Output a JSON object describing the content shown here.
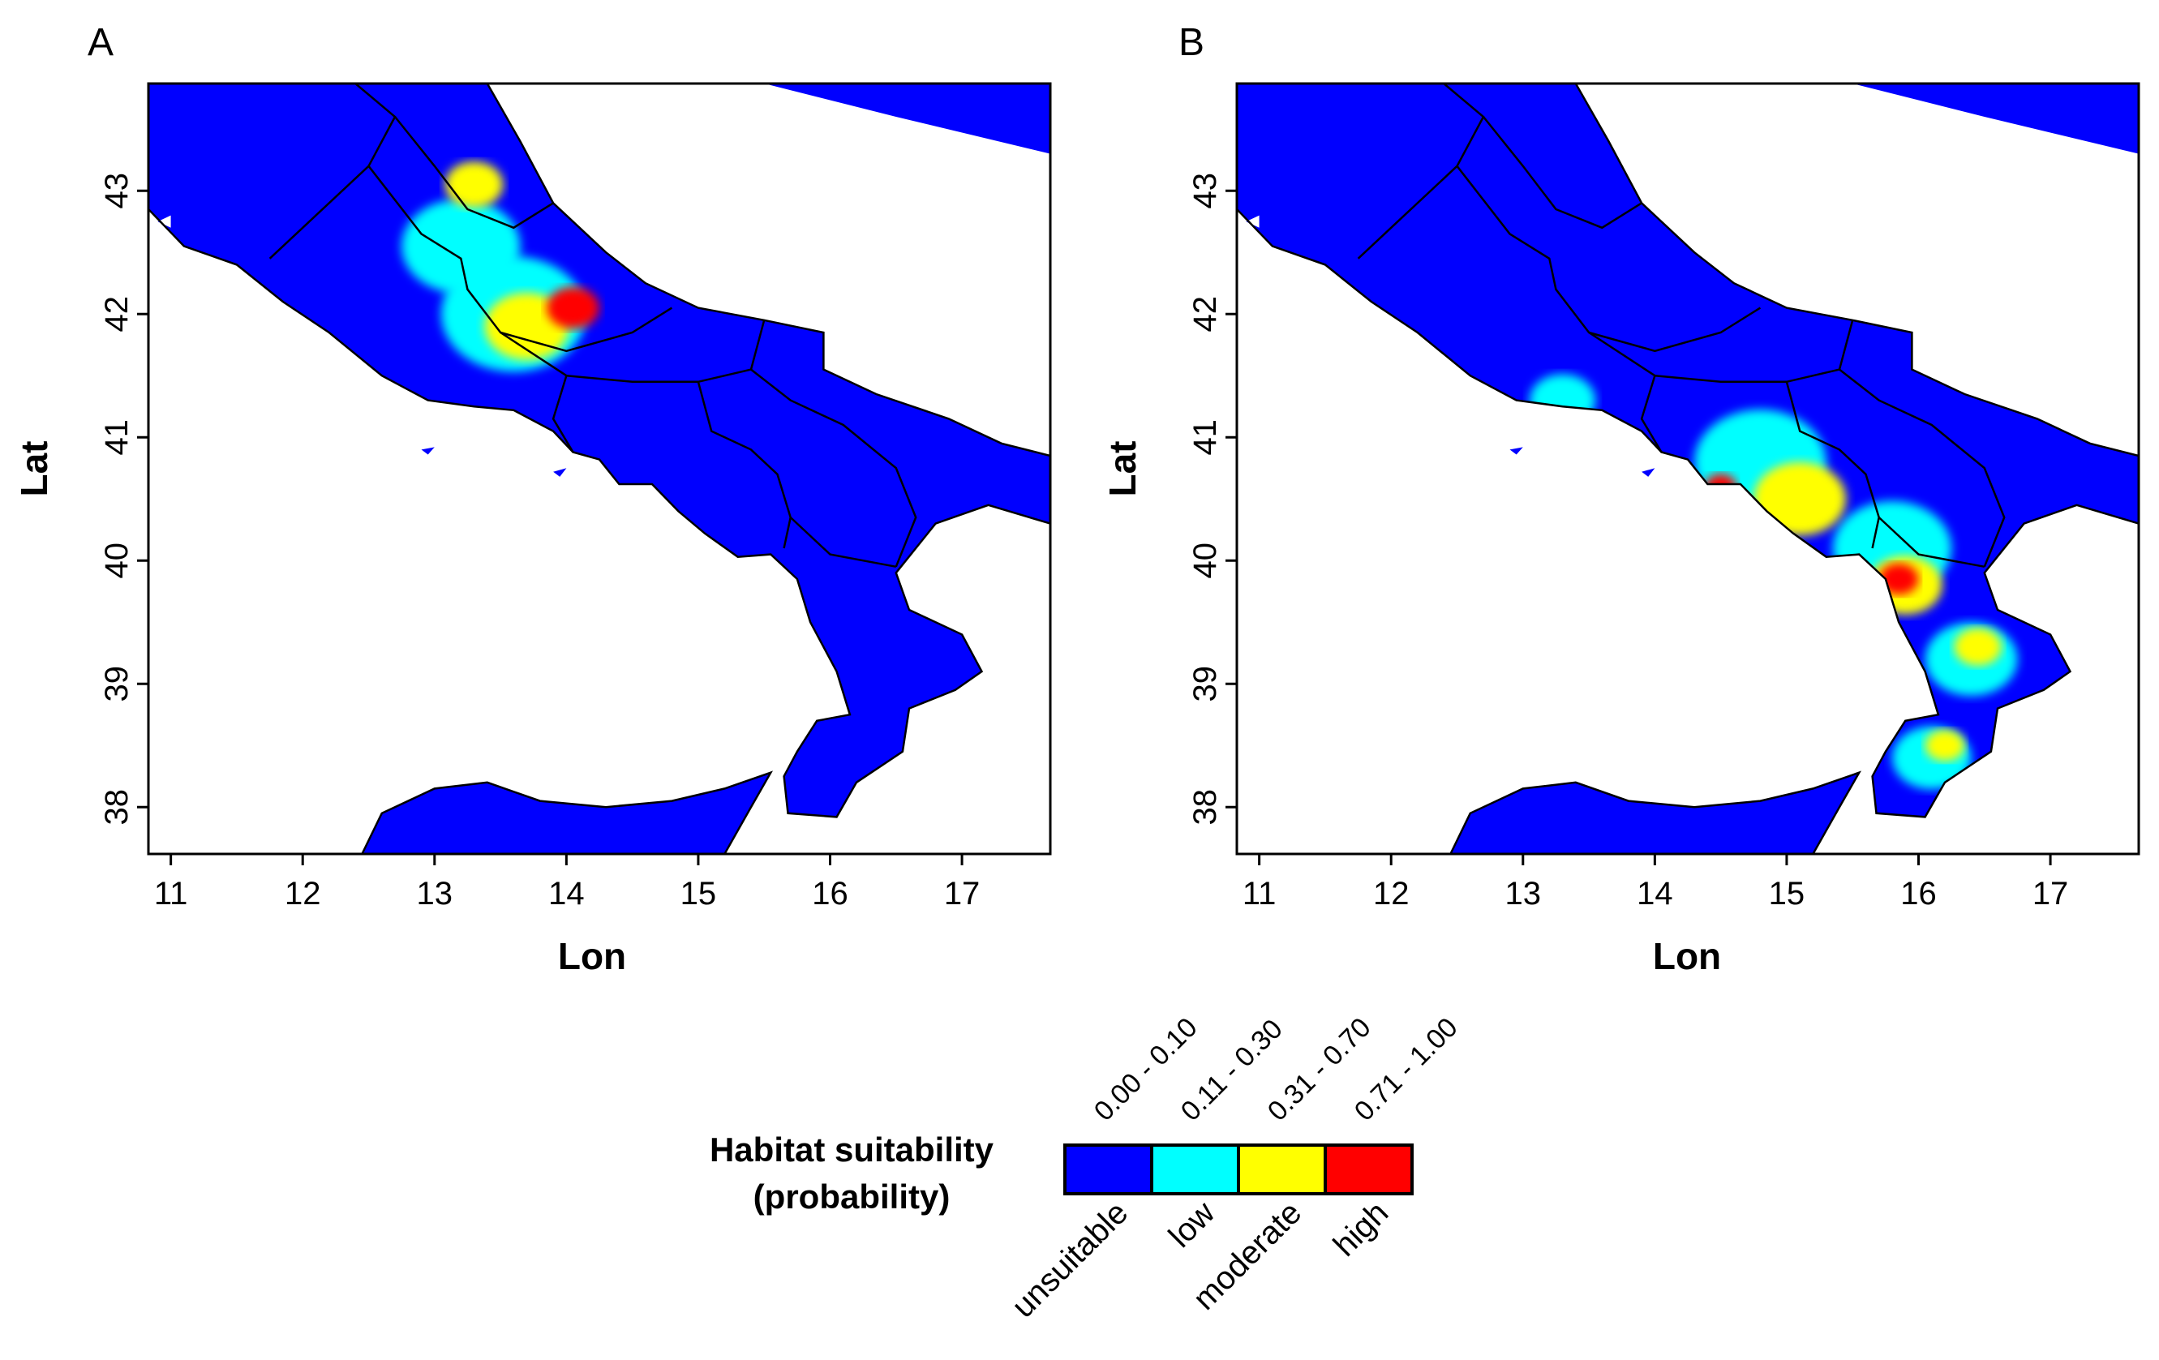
{
  "panels": [
    {
      "id": "A",
      "letter": "A",
      "x_label": "Lon",
      "y_label": "Lat",
      "lon_range": [
        10.83,
        17.67
      ],
      "lat_range": [
        37.62,
        43.87
      ],
      "x_ticks": [
        "11",
        "12",
        "13",
        "14",
        "15",
        "16",
        "17"
      ],
      "y_ticks": [
        "38",
        "39",
        "40",
        "41",
        "42",
        "43"
      ],
      "hotspots": [
        {
          "lon": 13.2,
          "lat": 42.55,
          "level": "low",
          "r": 0.45
        },
        {
          "lon": 13.3,
          "lat": 43.05,
          "level": "moderate",
          "r": 0.22
        },
        {
          "lon": 13.6,
          "lat": 42.0,
          "level": "low",
          "r": 0.55
        },
        {
          "lon": 13.7,
          "lat": 41.9,
          "level": "moderate",
          "r": 0.32
        },
        {
          "lon": 14.05,
          "lat": 42.05,
          "level": "high",
          "r": 0.2
        }
      ]
    },
    {
      "id": "B",
      "letter": "B",
      "x_label": "Lon",
      "y_label": "Lat",
      "lon_range": [
        10.83,
        17.67
      ],
      "lat_range": [
        37.62,
        43.87
      ],
      "x_ticks": [
        "11",
        "12",
        "13",
        "14",
        "15",
        "16",
        "17"
      ],
      "y_ticks": [
        "38",
        "39",
        "40",
        "41",
        "42",
        "43"
      ],
      "hotspots": [
        {
          "lon": 13.3,
          "lat": 41.3,
          "level": "low",
          "r": 0.25
        },
        {
          "lon": 14.8,
          "lat": 40.8,
          "level": "low",
          "r": 0.5
        },
        {
          "lon": 15.1,
          "lat": 40.5,
          "level": "moderate",
          "r": 0.35
        },
        {
          "lon": 15.8,
          "lat": 40.1,
          "level": "low",
          "r": 0.45
        },
        {
          "lon": 15.9,
          "lat": 39.8,
          "level": "moderate",
          "r": 0.28
        },
        {
          "lon": 14.5,
          "lat": 40.6,
          "level": "high",
          "r": 0.12
        },
        {
          "lon": 15.85,
          "lat": 39.85,
          "level": "high",
          "r": 0.15
        },
        {
          "lon": 16.4,
          "lat": 39.2,
          "level": "low",
          "r": 0.35
        },
        {
          "lon": 16.45,
          "lat": 39.3,
          "level": "moderate",
          "r": 0.18
        },
        {
          "lon": 16.1,
          "lat": 38.4,
          "level": "low",
          "r": 0.3
        },
        {
          "lon": 16.2,
          "lat": 38.5,
          "level": "moderate",
          "r": 0.15
        }
      ]
    }
  ],
  "legend": {
    "title_line1": "Habitat suitability",
    "title_line2": "(probability)",
    "classes": [
      {
        "range": "0.00 - 0.10",
        "label": "unsuitable",
        "color": "#0000ff"
      },
      {
        "range": "0.11 - 0.30",
        "label": "low",
        "color": "#00ffff"
      },
      {
        "range": "0.31 - 0.70",
        "label": "moderate",
        "color": "#ffff00"
      },
      {
        "range": "0.71 - 1.00",
        "label": "high",
        "color": "#ff0000"
      }
    ]
  },
  "colors": {
    "land_unsuitable": "#0000ff",
    "low": "#00ffff",
    "moderate": "#ffff00",
    "high": "#ff0000",
    "sea": "#ffffff",
    "border": "#000000"
  }
}
